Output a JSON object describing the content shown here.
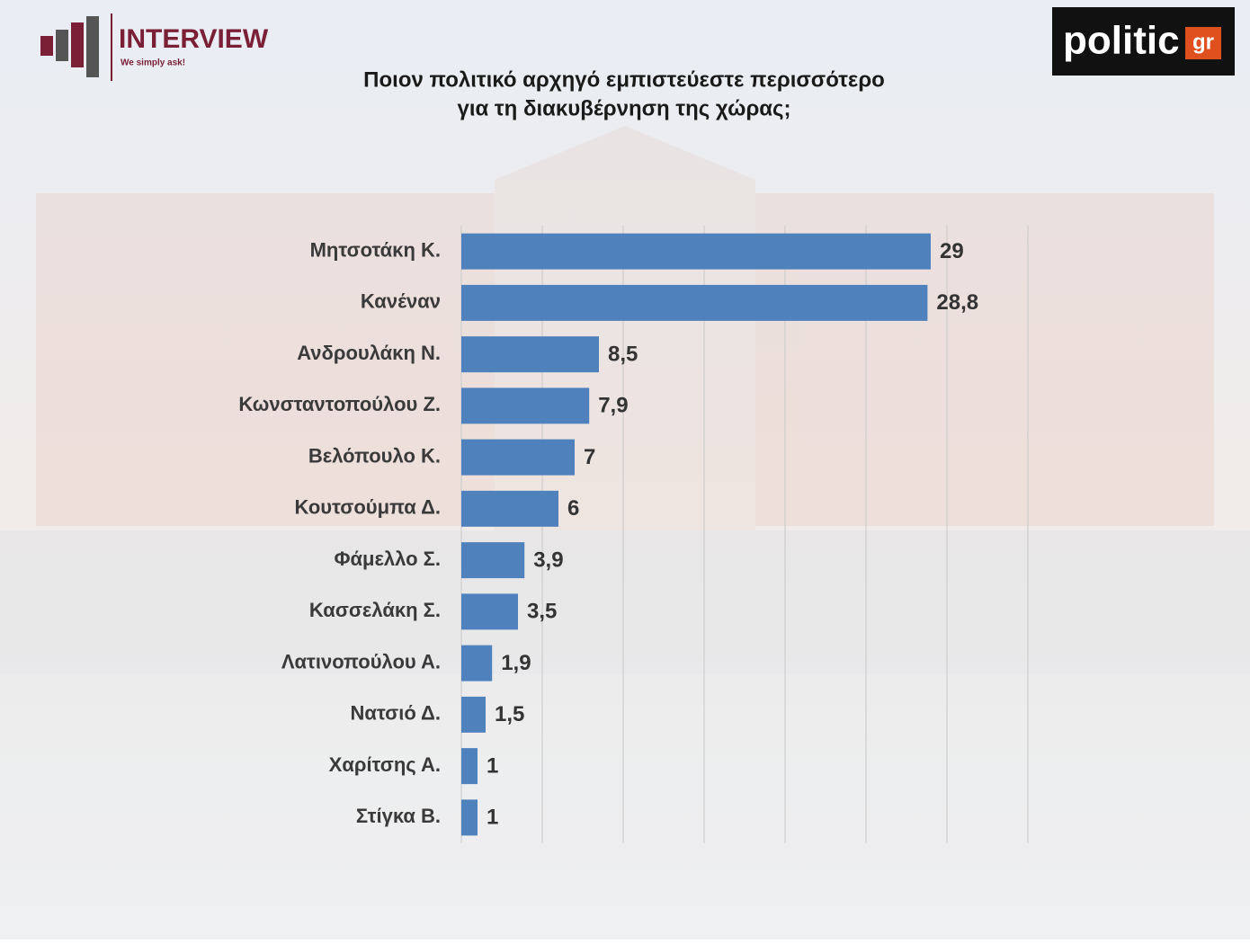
{
  "logos": {
    "left": "INTERVIEW",
    "left_tagline": "We simply ask!",
    "right": "politic",
    "right_suffix": "gr"
  },
  "chart_data": {
    "type": "barh",
    "title": [
      "Ποιον πολιτικό αρχηγό εμπιστεύεστε περισσότερο",
      "για τη διακυβέρνηση της χώρας;"
    ],
    "categories": [
      "Μητσοτάκη Κ.",
      "Κανέναν",
      "Ανδρουλάκη Ν.",
      "Κωνσταντοπούλου Ζ.",
      "Βελόπουλο Κ.",
      "Κουτσούμπα Δ.",
      "Φάμελλο Σ.",
      "Κασσελάκη Σ.",
      "Λατινοπούλου Α.",
      "Νατσιό Δ.",
      "Χαρίτσης Α.",
      "Στίγκα Β."
    ],
    "values": [
      29,
      28.8,
      8.5,
      7.9,
      7,
      6,
      3.9,
      3.5,
      1.9,
      1.5,
      1,
      1
    ],
    "value_labels": [
      "29",
      "28,8",
      "8,5",
      "7,9",
      "7",
      "6",
      "3,9",
      "3,5",
      "1,9",
      "1,5",
      "1",
      "1"
    ],
    "color": "#4f81bd",
    "xlim": [
      0,
      35
    ],
    "xticks": [
      0,
      5,
      10,
      15,
      20,
      25,
      30,
      35
    ],
    "grid": true
  }
}
